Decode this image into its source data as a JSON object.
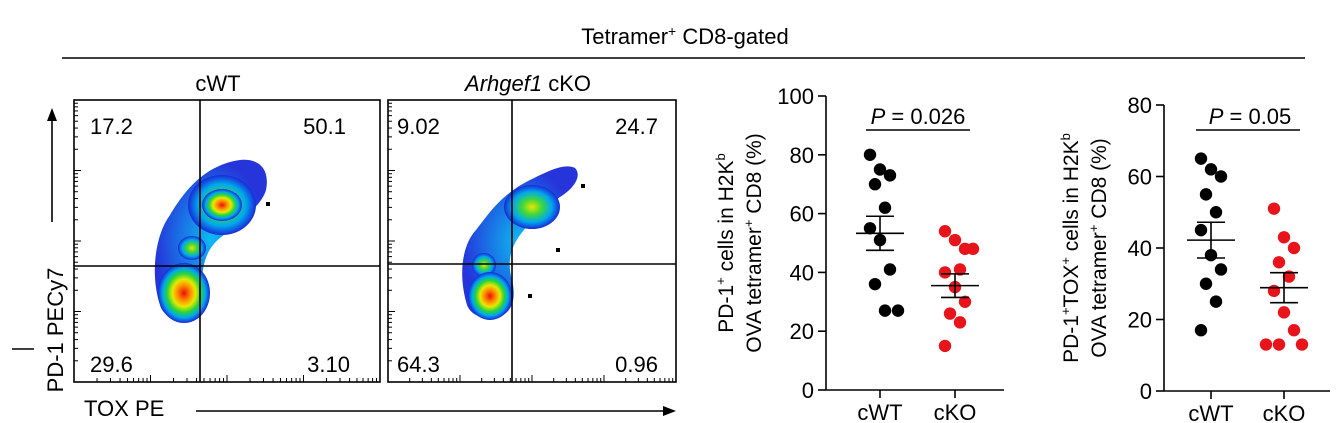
{
  "header": {
    "title": "Tetramer",
    "title_sup": "+",
    "title_tail": " CD8-gated"
  },
  "flow": {
    "y_axis_label": "PD-1 PECy7",
    "x_axis_label": "TOX PE",
    "panels": [
      {
        "title": "cWT",
        "title_italic": "",
        "quadrants": {
          "ul": "17.2",
          "ur": "50.1",
          "ll": "29.6",
          "lr": "3.10"
        }
      },
      {
        "title": " cKO",
        "title_italic": "Arhgef1",
        "quadrants": {
          "ul": "9.02",
          "ur": "24.7",
          "ll": "64.3",
          "lr": "0.96"
        }
      }
    ]
  },
  "chart_data": [
    {
      "type": "scatter",
      "ylabel_line1": [
        "PD-1",
        "+",
        " cells in H2K",
        "b"
      ],
      "ylabel_line2": [
        "OVA tetramer",
        "+",
        " CD8 (%)"
      ],
      "ylim": [
        0,
        100
      ],
      "yticks": [
        "0",
        "20",
        "40",
        "60",
        "80",
        "100"
      ],
      "categories": [
        "cWT",
        "cKO"
      ],
      "pvalue": {
        "p": "P",
        "rest": " = 0.026"
      },
      "series": [
        {
          "values": [
            80,
            75,
            73,
            70,
            62,
            55,
            51,
            41,
            36,
            27,
            27
          ],
          "mean": 53.3,
          "sem": 5.8,
          "color": "#000000"
        },
        {
          "values": [
            54,
            51,
            48,
            48,
            41,
            40,
            35,
            30,
            26,
            23,
            15
          ],
          "mean": 35.5,
          "sem": 4.0,
          "color": "#e8141b"
        }
      ]
    },
    {
      "type": "scatter",
      "ylabel_line1": [
        "PD-1",
        "+",
        "TOX",
        "+",
        " cells in H2K",
        "b"
      ],
      "ylabel_line2": [
        "OVA tetramer",
        "+",
        " CD8 (%)"
      ],
      "ylim": [
        0,
        80
      ],
      "yticks": [
        "0",
        "20",
        "40",
        "60",
        "80"
      ],
      "categories": [
        "cWT",
        "cKO"
      ],
      "pvalue": {
        "p": "P",
        "rest": " = 0.05"
      },
      "series": [
        {
          "values": [
            65,
            62,
            60,
            55,
            50,
            45,
            38,
            34,
            30,
            25,
            17
          ],
          "mean": 42.2,
          "sem": 5.0,
          "color": "#000000"
        },
        {
          "values": [
            51,
            43,
            40,
            36,
            32,
            28,
            22,
            17,
            13,
            13,
            13
          ],
          "mean": 28.9,
          "sem": 4.2,
          "color": "#e8141b"
        }
      ]
    }
  ]
}
